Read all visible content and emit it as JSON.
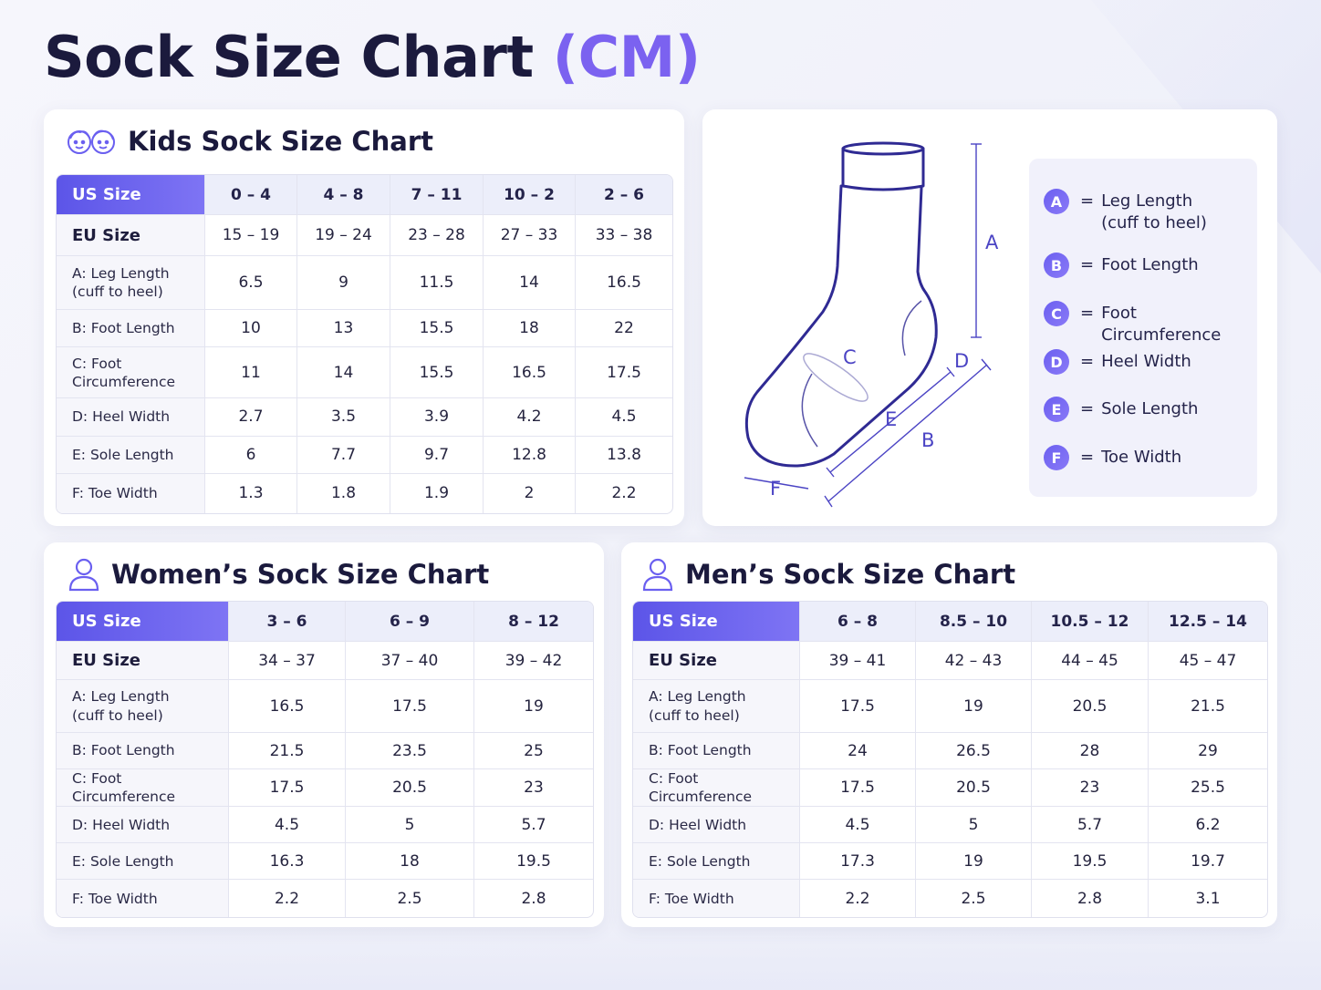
{
  "title": {
    "main": "Sock Size Chart",
    "unit": "(CM)"
  },
  "kids": {
    "heading": "Kids Sock Size Chart",
    "icon": "kids-faces-icon",
    "header_label": "US Size",
    "us_sizes": [
      "0 – 4",
      "4 – 8",
      "7 – 11",
      "10 – 2",
      "2 – 6"
    ],
    "eu_label": "EU Size",
    "eu_sizes": [
      "15 – 19",
      "19 – 24",
      "23 – 28",
      "27 – 33",
      "33 – 38"
    ],
    "rows": [
      {
        "label": [
          "A: Leg Length",
          "(cuff to heel)"
        ],
        "values": [
          "6.5",
          "9",
          "11.5",
          "14",
          "16.5"
        ]
      },
      {
        "label": [
          "B: Foot Length"
        ],
        "values": [
          "10",
          "13",
          "15.5",
          "18",
          "22"
        ]
      },
      {
        "label": [
          "C: Foot",
          "Circumference"
        ],
        "values": [
          "11",
          "14",
          "15.5",
          "16.5",
          "17.5"
        ]
      },
      {
        "label": [
          "D: Heel Width"
        ],
        "values": [
          "2.7",
          "3.5",
          "3.9",
          "4.2",
          "4.5"
        ]
      },
      {
        "label": [
          "E: Sole Length"
        ],
        "values": [
          "6",
          "7.7",
          "9.7",
          "12.8",
          "13.8"
        ]
      },
      {
        "label": [
          "F: Toe Width"
        ],
        "values": [
          "1.3",
          "1.8",
          "1.9",
          "2",
          "2.2"
        ]
      }
    ]
  },
  "diagram": {
    "markers": [
      "A",
      "B",
      "C",
      "D",
      "E",
      "F"
    ],
    "legend": [
      {
        "letter": "A",
        "text": [
          "Leg Length",
          "(cuff to heel)"
        ]
      },
      {
        "letter": "B",
        "text": [
          "Foot Length"
        ]
      },
      {
        "letter": "C",
        "text": [
          "Foot Circumference"
        ]
      },
      {
        "letter": "D",
        "text": [
          "Heel Width"
        ]
      },
      {
        "letter": "E",
        "text": [
          "Sole Length"
        ]
      },
      {
        "letter": "F",
        "text": [
          "Toe Width"
        ]
      }
    ],
    "equals": "="
  },
  "women": {
    "heading": "Women’s Sock Size Chart",
    "icon": "person-icon",
    "header_label": "US Size",
    "us_sizes": [
      "3 – 6",
      "6 – 9",
      "8 – 12"
    ],
    "eu_label": "EU Size",
    "eu_sizes": [
      "34 – 37",
      "37 – 40",
      "39 – 42"
    ],
    "rows": [
      {
        "label": [
          "A: Leg Length",
          "(cuff to heel)"
        ],
        "values": [
          "16.5",
          "17.5",
          "19"
        ]
      },
      {
        "label": [
          "B: Foot Length"
        ],
        "values": [
          "21.5",
          "23.5",
          "25"
        ]
      },
      {
        "label": [
          "C: Foot Circumference"
        ],
        "values": [
          "17.5",
          "20.5",
          "23"
        ]
      },
      {
        "label": [
          "D: Heel Width"
        ],
        "values": [
          "4.5",
          "5",
          "5.7"
        ]
      },
      {
        "label": [
          "E: Sole Length"
        ],
        "values": [
          "16.3",
          "18",
          "19.5"
        ]
      },
      {
        "label": [
          "F: Toe Width"
        ],
        "values": [
          "2.2",
          "2.5",
          "2.8"
        ]
      }
    ]
  },
  "men": {
    "heading": "Men’s Sock Size Chart",
    "icon": "person-icon",
    "header_label": "US Size",
    "us_sizes": [
      "6 – 8",
      "8.5 – 10",
      "10.5 – 12",
      "12.5 – 14"
    ],
    "eu_label": "EU Size",
    "eu_sizes": [
      "39 – 41",
      "42 – 43",
      "44 – 45",
      "45 – 47"
    ],
    "rows": [
      {
        "label": [
          "A: Leg Length",
          "(cuff to heel)"
        ],
        "values": [
          "17.5",
          "19",
          "20.5",
          "21.5"
        ]
      },
      {
        "label": [
          "B: Foot Length"
        ],
        "values": [
          "24",
          "26.5",
          "28",
          "29"
        ]
      },
      {
        "label": [
          "C: Foot Circumference"
        ],
        "values": [
          "17.5",
          "20.5",
          "23",
          "25.5"
        ]
      },
      {
        "label": [
          "D: Heel Width"
        ],
        "values": [
          "4.5",
          "5",
          "5.7",
          "6.2"
        ]
      },
      {
        "label": [
          "E: Sole Length"
        ],
        "values": [
          "17.3",
          "19",
          "19.5",
          "19.7"
        ]
      },
      {
        "label": [
          "F: Toe Width"
        ],
        "values": [
          "2.2",
          "2.5",
          "2.8",
          "3.1"
        ]
      }
    ]
  }
}
